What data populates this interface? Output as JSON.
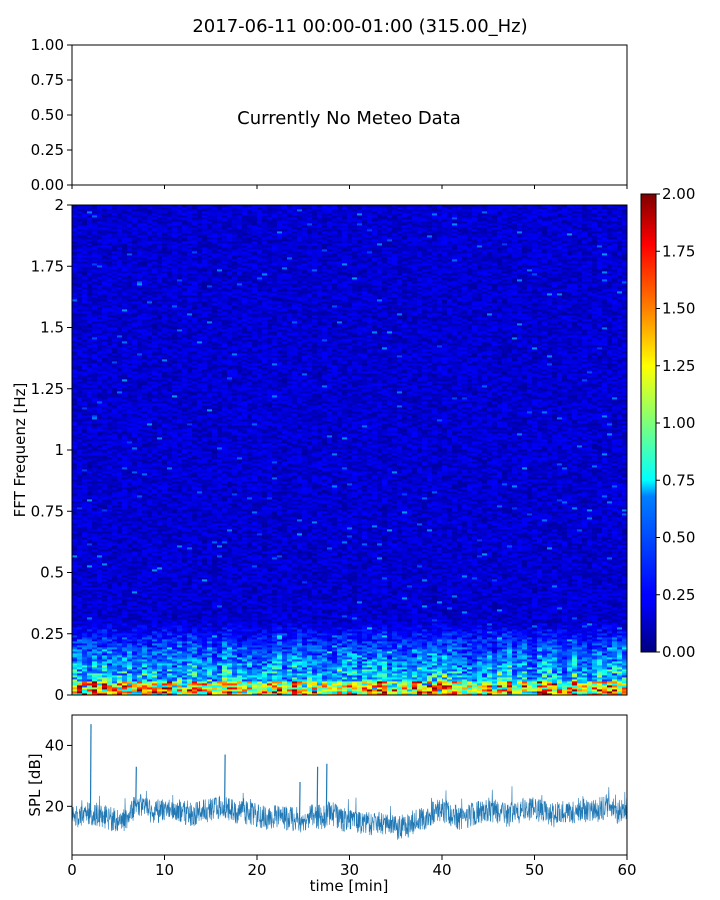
{
  "figure": {
    "title": "2017-06-11 00:00-01:00 (315.00_Hz)"
  },
  "colors": {
    "line": "#1f77b4",
    "colormap": "jet",
    "axes_edge": "#000000"
  },
  "chart_data": [
    {
      "id": "meteo",
      "type": "line",
      "annotation": "Currently No Meteo Data",
      "xlim": [
        0,
        60
      ],
      "ylim": [
        0,
        1
      ],
      "yticks": [
        0,
        0.25,
        0.5,
        0.75,
        1
      ],
      "ytick_labels": [
        "0.00",
        "0.25",
        "0.50",
        "0.75",
        "1.00"
      ],
      "series": []
    },
    {
      "id": "spectrogram",
      "type": "heatmap",
      "ylabel": "FFT Frequenz [Hz]",
      "xlim": [
        0,
        60
      ],
      "ylim": [
        0,
        2
      ],
      "yticks": [
        0,
        0.25,
        0.5,
        0.75,
        1,
        1.25,
        1.5,
        1.75,
        2
      ],
      "ytick_labels": [
        "0",
        "0.25",
        "0.5",
        "0.75",
        "1",
        "1.25",
        "1.5",
        "1.75",
        "2"
      ],
      "colorbar": {
        "vmin": 0,
        "vmax": 2,
        "ticks": [
          "0.00",
          "0.25",
          "0.50",
          "0.75",
          "1.00",
          "1.25",
          "1.50",
          "1.75",
          "2.00"
        ]
      },
      "description_levels": {
        "background": 0.15,
        "low_freq_band_max_hz": 0.3,
        "low_freq_band_value": 0.8,
        "peak_near_zero": 2.0
      }
    },
    {
      "id": "spl",
      "type": "line",
      "xlabel": "time [min]",
      "ylabel": "SPL [dB]",
      "xlim": [
        0,
        60
      ],
      "ylim": [
        4,
        50
      ],
      "xticks": [
        0,
        10,
        20,
        30,
        40,
        50,
        60
      ],
      "xtick_labels": [
        "0",
        "10",
        "20",
        "30",
        "40",
        "50",
        "60"
      ],
      "yticks": [
        20,
        40
      ],
      "ytick_labels": [
        "20",
        "40"
      ],
      "series": [
        {
          "x": [
            0,
            1,
            2,
            3,
            4,
            5,
            6,
            7,
            8,
            9,
            10,
            11,
            12,
            13,
            14,
            15,
            16,
            17,
            18,
            19,
            20,
            21,
            22,
            23,
            24,
            25,
            26,
            27,
            28,
            29,
            30,
            31,
            32,
            33,
            34,
            35,
            36,
            37,
            38,
            39,
            40,
            41,
            42,
            43,
            44,
            45,
            46,
            47,
            48,
            49,
            50,
            51,
            52,
            53,
            54,
            55,
            56,
            57,
            58,
            59,
            60
          ],
          "y": [
            17,
            16,
            18,
            17,
            16,
            15,
            16,
            21,
            19,
            18,
            19,
            20,
            18,
            17,
            18,
            19,
            20,
            19,
            18,
            18,
            17,
            16,
            17,
            16,
            16,
            15,
            17,
            16,
            18,
            16,
            15,
            15,
            14,
            15,
            14,
            13,
            13,
            15,
            16,
            18,
            19,
            17,
            16,
            17,
            18,
            19,
            18,
            17,
            18,
            19,
            19,
            18,
            17,
            18,
            18,
            19,
            18,
            19,
            20,
            18,
            19
          ],
          "spikes": [
            {
              "x": 2.0,
              "y": 47
            },
            {
              "x": 6.9,
              "y": 33
            },
            {
              "x": 16.5,
              "y": 37
            },
            {
              "x": 26.5,
              "y": 33
            },
            {
              "x": 27.5,
              "y": 34
            },
            {
              "x": 24.6,
              "y": 28
            }
          ]
        }
      ]
    }
  ]
}
